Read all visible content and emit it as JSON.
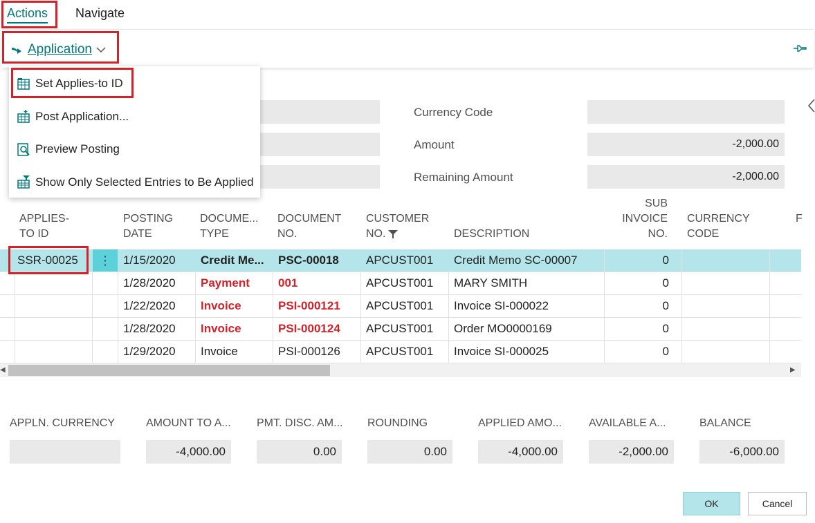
{
  "tabs": {
    "actions": "Actions",
    "navigate": "Navigate"
  },
  "action_bar": {
    "application_label": "Application"
  },
  "dropdown": {
    "items": [
      {
        "label": "Set Applies-to ID"
      },
      {
        "label": "Post Application..."
      },
      {
        "label": "Preview Posting"
      },
      {
        "label": "Show Only Selected Entries to Be Applied"
      }
    ]
  },
  "header_fields": {
    "currency_code_label": "Currency Code",
    "currency_code_value": "",
    "amount_label": "Amount",
    "amount_value": "-2,000.00",
    "remaining_label": "Remaining Amount",
    "remaining_value": "-2,000.00"
  },
  "grid": {
    "headers": {
      "applies_to_id": [
        "APPLIES-",
        "TO ID"
      ],
      "posting_date": [
        "POSTING",
        "DATE"
      ],
      "document_type": [
        "DOCUME...",
        "TYPE"
      ],
      "document_no": [
        "DOCUMENT",
        "NO."
      ],
      "customer_no": [
        "CUSTOMER",
        "NO."
      ],
      "description": [
        "DESCRIPTION"
      ],
      "sub_invoice_no": [
        "SUB",
        "INVOICE",
        "NO."
      ],
      "currency_code": [
        "CURRENCY",
        "CODE"
      ],
      "next": "F"
    },
    "rows": [
      {
        "applies_to_id": "SSR-00025",
        "posting_date": "1/15/2020",
        "document_type": "Credit Me...",
        "document_no": "PSC-00018",
        "customer_no": "APCUST001",
        "description": "Credit Memo SC-00007",
        "sub_invoice_no": "0"
      },
      {
        "applies_to_id": "",
        "posting_date": "1/28/2020",
        "document_type": "Payment",
        "document_no": "001",
        "customer_no": "APCUST001",
        "description": "MARY SMITH",
        "sub_invoice_no": "0"
      },
      {
        "applies_to_id": "",
        "posting_date": "1/22/2020",
        "document_type": "Invoice",
        "document_no": "PSI-000121",
        "customer_no": "APCUST001",
        "description": "Invoice SI-000022",
        "sub_invoice_no": "0"
      },
      {
        "applies_to_id": "",
        "posting_date": "1/28/2020",
        "document_type": "Invoice",
        "document_no": "PSI-000124",
        "customer_no": "APCUST001",
        "description": "Order MO0000169",
        "sub_invoice_no": "0"
      },
      {
        "applies_to_id": "",
        "posting_date": "1/29/2020",
        "document_type": "Invoice",
        "document_no": "PSI-000126",
        "customer_no": "APCUST001",
        "description": "Invoice SI-000025",
        "sub_invoice_no": "0"
      }
    ]
  },
  "footer": {
    "appln_currency_label": "APPLN. CURRENCY",
    "appln_currency_value": "",
    "amount_to_apply_label": "AMOUNT TO A...",
    "amount_to_apply_value": "-4,000.00",
    "pmt_disc_label": "PMT. DISC. AM...",
    "pmt_disc_value": "0.00",
    "rounding_label": "ROUNDING",
    "rounding_value": "0.00",
    "applied_amount_label": "APPLIED AMO...",
    "applied_amount_value": "-4,000.00",
    "available_label": "AVAILABLE A...",
    "available_value": "-2,000.00",
    "balance_label": "BALANCE",
    "balance_value": "-6,000.00"
  },
  "buttons": {
    "ok": "OK",
    "cancel": "Cancel"
  },
  "colors": {
    "accent": "#00797d",
    "highlight_red": "#d3232a",
    "selected_row": "#b3e5ea"
  },
  "icons": [
    "arrow-right-icon",
    "chevron-down-icon",
    "pin-icon",
    "grid-icon",
    "post-icon",
    "preview-icon",
    "filter-icon",
    "chevron-left-icon",
    "more-vertical-icon"
  ]
}
